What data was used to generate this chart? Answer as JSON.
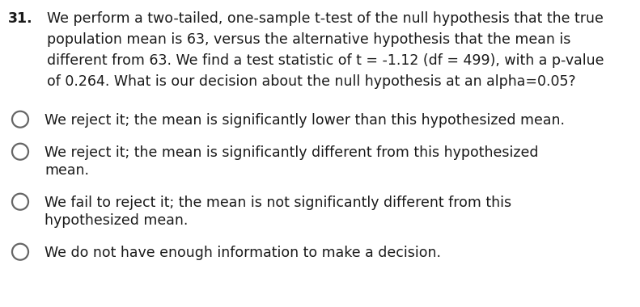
{
  "background_color": "#ffffff",
  "question_number": "31.",
  "question_lines": [
    "We perform a two-tailed, one-sample t-test of the null hypothesis that the true",
    "population mean is 63, versus the alternative hypothesis that the mean is",
    "different from 63. We find a test statistic of t = -1.12 (df = 499), with a p-value",
    "of 0.264. What is our decision about the null hypothesis at an alpha=0.05?"
  ],
  "options": [
    [
      "We reject it; the mean is significantly lower than this hypothesized mean."
    ],
    [
      "We reject it; the mean is significantly different from this hypothesized",
      "mean."
    ],
    [
      "We fail to reject it; the mean is not significantly different from this",
      "hypothesized mean."
    ],
    [
      "We do not have enough information to make a decision."
    ]
  ],
  "text_color": "#1a1a1a",
  "circle_edge_color": "#666666",
  "font_size": 12.5,
  "fig_width": 7.91,
  "fig_height": 3.8,
  "dpi": 100
}
